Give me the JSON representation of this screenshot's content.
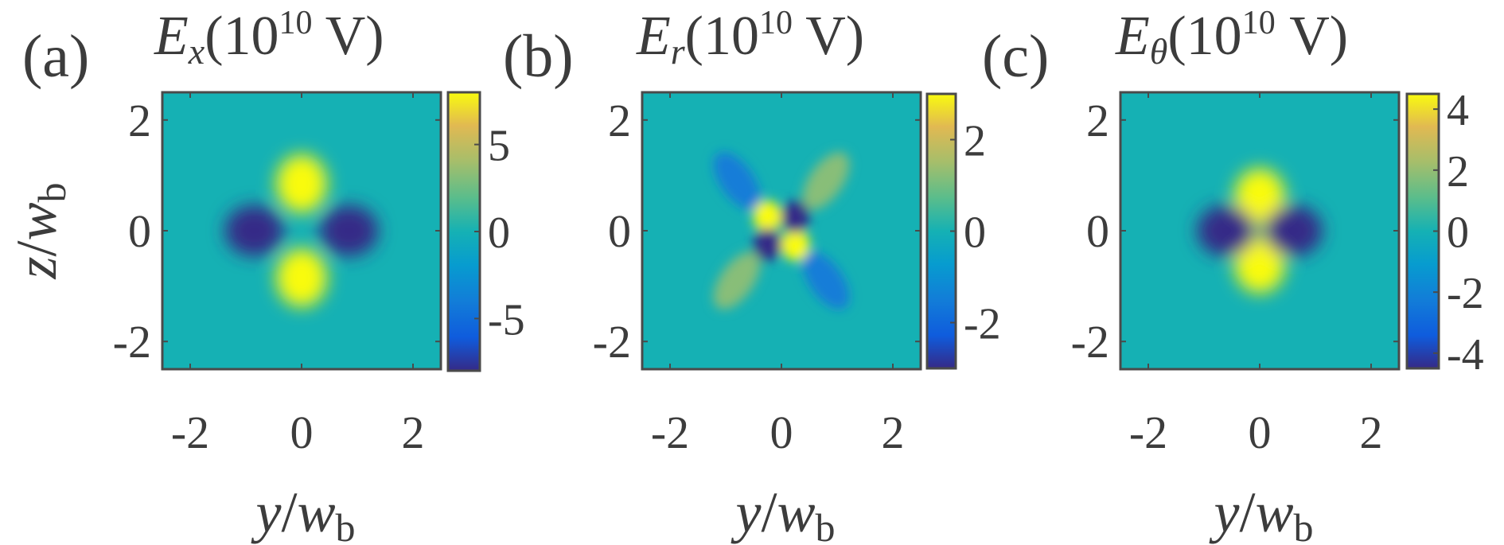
{
  "chart_data": [
    {
      "type": "heatmap",
      "panel_label": "(a)",
      "title": "E_x(10^10 V)",
      "title_parts": {
        "main": "E",
        "sub": "x",
        "unit_open": "(10",
        "exp": "10",
        "unit_close": " V)"
      },
      "xlabel": "y/w_b",
      "xlabel_parts": {
        "var": "y",
        "slash": "/",
        "w": "w",
        "sub": "b"
      },
      "ylabel": "z/w_b",
      "ylabel_parts": {
        "var": "z",
        "slash": "/",
        "w": "w",
        "sub": "b"
      },
      "xlim": [
        -2.5,
        2.5
      ],
      "ylim": [
        -2.5,
        2.5
      ],
      "xticks": [
        -2,
        0,
        2
      ],
      "xtick_labels": [
        "-2",
        "0",
        "2"
      ],
      "yticks": [
        -2,
        0,
        2
      ],
      "ytick_labels": [
        "-2",
        "0",
        "2"
      ],
      "colorbar": {
        "range": [
          -8,
          8
        ],
        "ticks": [
          -5,
          0,
          5
        ],
        "tick_labels": [
          "-5",
          "0",
          "5"
        ]
      },
      "pattern": {
        "description": "four-lobe field: positive lobes along ±z, negative lobes along ±y",
        "lobes": [
          {
            "y": 0,
            "z": 0.85,
            "value": 8
          },
          {
            "y": 0,
            "z": -0.85,
            "value": 8
          },
          {
            "y": -0.85,
            "z": 0,
            "value": -8
          },
          {
            "y": 0.85,
            "z": 0,
            "value": -8
          }
        ]
      }
    },
    {
      "type": "heatmap",
      "panel_label": "(b)",
      "title": "E_r(10^10 V)",
      "title_parts": {
        "main": "E",
        "sub": "r",
        "unit_open": "(10",
        "exp": "10",
        "unit_close": " V)"
      },
      "xlabel": "y/w_b",
      "xlabel_parts": {
        "var": "y",
        "slash": "/",
        "w": "w",
        "sub": "b"
      },
      "ylabel": "",
      "xlim": [
        -2.5,
        2.5
      ],
      "ylim": [
        -2.5,
        2.5
      ],
      "xticks": [
        -2,
        0,
        2
      ],
      "xtick_labels": [
        "-2",
        "0",
        "2"
      ],
      "yticks": [
        -2,
        0,
        2
      ],
      "ytick_labels": [
        "-2",
        "0",
        "2"
      ],
      "colorbar": {
        "range": [
          -3,
          3
        ],
        "ticks": [
          -2,
          0,
          2
        ],
        "tick_labels": [
          "-2",
          "0",
          "2"
        ]
      },
      "pattern": {
        "description": "inner four-lobe core with alternating sign, surrounded by a weaker rotated outer ring of alternating sign",
        "lobes": [
          {
            "y": -0.25,
            "z": 0.25,
            "value": 3
          },
          {
            "y": 0.25,
            "z": -0.25,
            "value": 3
          },
          {
            "y": 0.25,
            "z": 0.25,
            "value": -3
          },
          {
            "y": -0.25,
            "z": -0.25,
            "value": -3
          },
          {
            "y": -0.8,
            "z": 0.9,
            "value": -1.5
          },
          {
            "y": 0.8,
            "z": -0.9,
            "value": -1.5
          },
          {
            "y": 0.8,
            "z": 0.9,
            "value": 1.2
          },
          {
            "y": -0.8,
            "z": -0.9,
            "value": 1.2
          }
        ]
      }
    },
    {
      "type": "heatmap",
      "panel_label": "(c)",
      "title": "E_θ(10^10 V)",
      "title_parts": {
        "main": "E",
        "sub": "θ",
        "unit_open": "(10",
        "exp": "10",
        "unit_close": " V)"
      },
      "xlabel": "y/w_b",
      "xlabel_parts": {
        "var": "y",
        "slash": "/",
        "w": "w",
        "sub": "b"
      },
      "ylabel": "",
      "xlim": [
        -2.5,
        2.5
      ],
      "ylim": [
        -2.5,
        2.5
      ],
      "xticks": [
        -2,
        0,
        2
      ],
      "xtick_labels": [
        "-2",
        "0",
        "2"
      ],
      "yticks": [
        -2,
        0,
        2
      ],
      "ytick_labels": [
        "-2",
        "0",
        "2"
      ],
      "colorbar": {
        "range": [
          -4.5,
          4.5
        ],
        "ticks": [
          -4,
          -2,
          0,
          2,
          4
        ],
        "tick_labels": [
          "-4",
          "-2",
          "0",
          "2",
          "4"
        ]
      },
      "pattern": {
        "description": "four-lobe field with sharp center: positive lobes along ±z, negative lobes along ±y",
        "lobes": [
          {
            "y": 0,
            "z": 0.6,
            "value": 4.5
          },
          {
            "y": 0,
            "z": -0.6,
            "value": 4.5
          },
          {
            "y": -0.6,
            "z": 0,
            "value": -4.5
          },
          {
            "y": 0.6,
            "z": 0,
            "value": -4.5
          }
        ]
      }
    }
  ]
}
